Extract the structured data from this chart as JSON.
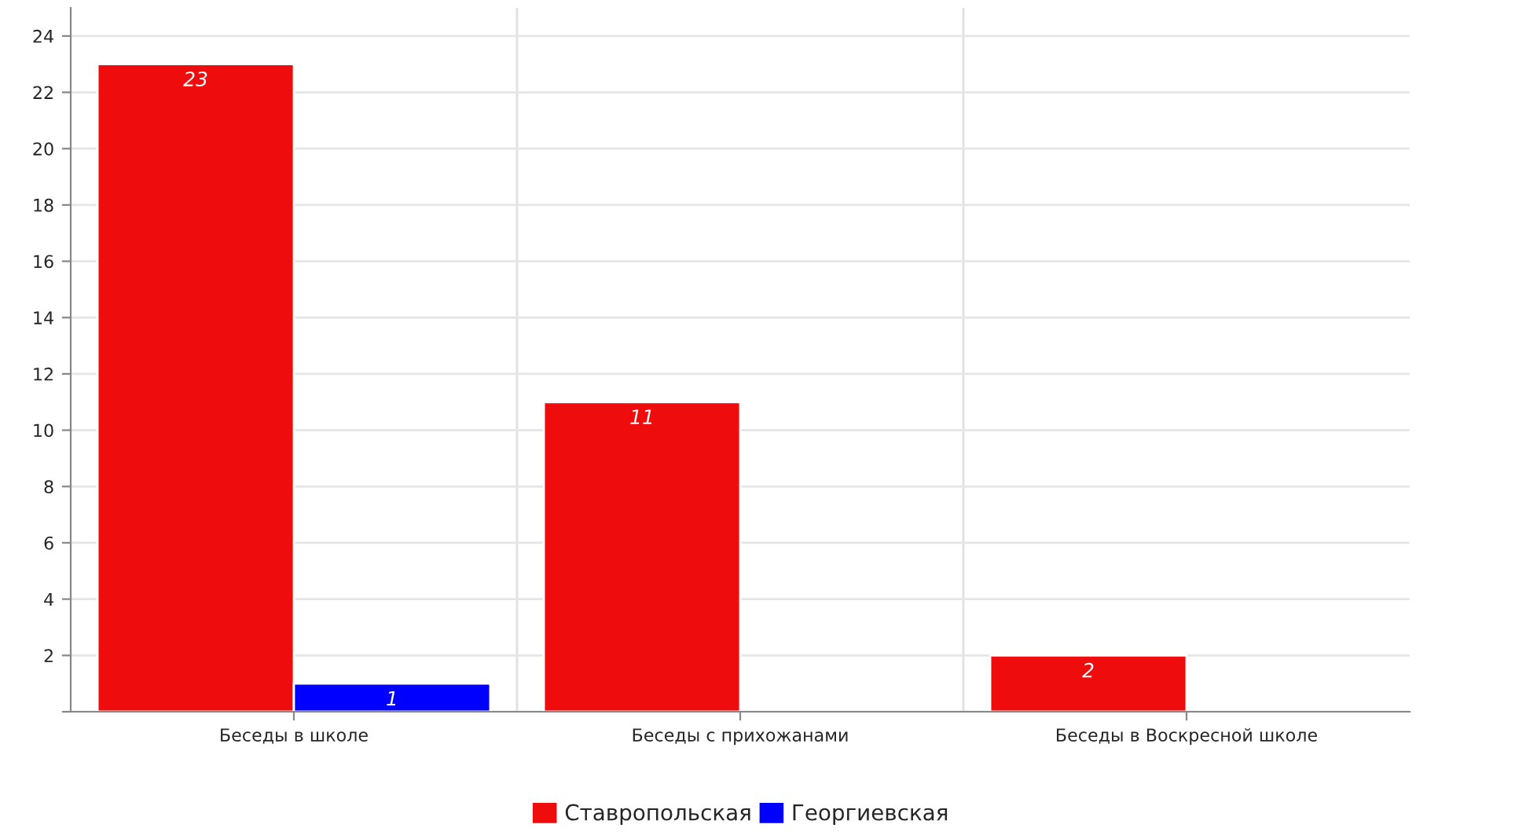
{
  "chart_data": {
    "type": "bar",
    "categories": [
      "Беседы в школе",
      "Беседы с прихожанами",
      "Беседы в Воскресной школе"
    ],
    "series": [
      {
        "name": "Ставропольская",
        "color": "#ee0c0c",
        "values": [
          23,
          11,
          2
        ]
      },
      {
        "name": "Георгиевская",
        "color": "#0000ff",
        "values": [
          1,
          null,
          null
        ]
      }
    ],
    "ylim": [
      0,
      25
    ],
    "yticks": [
      {
        "value": 0,
        "label": null
      },
      2,
      4,
      6,
      8,
      10,
      12,
      14,
      16,
      18,
      20,
      22,
      24
    ],
    "grid": true,
    "legend": "bottom",
    "data_labels": true
  }
}
